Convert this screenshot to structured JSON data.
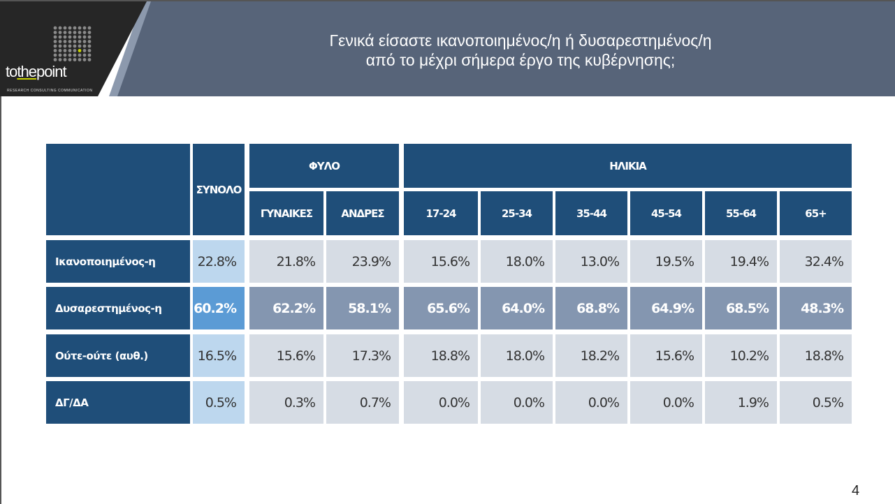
{
  "header": {
    "title_line1": "Γενικά είσαστε ικανοποιημένος/η ή δυσαρεστημένος/η",
    "title_line2": "από το μέχρι σήμερα έργο της κυβέρνησης;",
    "logo_pre": "to",
    "logo_mid": "the",
    "logo_post": "point",
    "logo_tagline": "RESEARCH  CONSULTING  COMMUNICATION",
    "colors": {
      "header": "#576479",
      "logo_panel": "#262626",
      "accent": "#c8d400"
    }
  },
  "table": {
    "total_header": "ΣΥΝΟΛΟ",
    "gender_group": "ΦΥΛΟ",
    "age_group": "ΗΛΙΚΙΑ",
    "columns": [
      "ΓΥΝΑΙΚΕΣ",
      "ΑΝΔΡΕΣ",
      "17-24",
      "25-34",
      "35-44",
      "45-54",
      "55-64",
      "65+"
    ],
    "rows": [
      {
        "label": "Ικανοποιημένος-η",
        "total": "22.8%",
        "values": [
          "21.8%",
          "23.9%",
          "15.6%",
          "18.0%",
          "13.0%",
          "19.5%",
          "19.4%",
          "32.4%"
        ]
      },
      {
        "label": "Δυσαρεστημένος-η",
        "total": "60.2%",
        "values": [
          "62.2%",
          "58.1%",
          "65.6%",
          "64.0%",
          "68.8%",
          "64.9%",
          "68.5%",
          "48.3%"
        ]
      },
      {
        "label": "Ούτε-ούτε (αυθ.)",
        "total": "16.5%",
        "values": [
          "15.6%",
          "17.3%",
          "18.8%",
          "18.0%",
          "18.2%",
          "15.6%",
          "10.2%",
          "18.8%"
        ]
      },
      {
        "label": "ΔΓ/ΔΑ",
        "total": "0.5%",
        "values": [
          "0.3%",
          "0.7%",
          "0.0%",
          "0.0%",
          "0.0%",
          "0.0%",
          "1.9%",
          "0.5%"
        ]
      }
    ],
    "colors": {
      "header": "#1f4e79",
      "cell": "#d6dce4",
      "total_cell": "#bdd7ee",
      "highlight": "#8496b0",
      "highlight_total": "#5b9bd5"
    }
  },
  "page_number": "4"
}
